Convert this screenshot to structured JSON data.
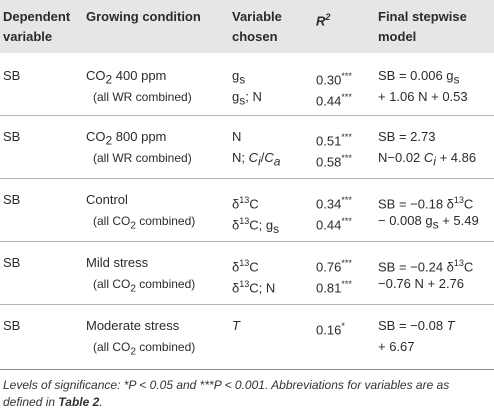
{
  "header": {
    "dependent_line1": "Dependent",
    "dependent_line2": "variable",
    "growing": "Growing condition",
    "variable_line1": "Variable",
    "variable_line2": "chosen",
    "r2_r": "R",
    "r2_sup": "2",
    "final_line1": "Final stepwise",
    "final_line2": "model"
  },
  "rows": [
    {
      "dep": "SB",
      "cond_a": "CO",
      "cond_a_sub": "2",
      "cond_a_rest": " 400 ppm",
      "cond_b": "(all WR combined)",
      "var1_a": "g",
      "var1_a_sub": "s",
      "var2_a": "g",
      "var2_a_sub": "s",
      "var2_b": "; N",
      "r1": "0.30",
      "r1_sig": "***",
      "r2": "0.44",
      "r2_sig": "***",
      "m1": "SB = 0.006 g",
      "m1_sub": "s",
      "m2": "+ 1.06 N + 0.53"
    },
    {
      "dep": "SB",
      "cond_a": "CO",
      "cond_a_sub": "2",
      "cond_a_rest": " 800 ppm",
      "cond_b": "(all WR combined)",
      "var1": "N",
      "var2_a": "N; ",
      "var2_ci": "C",
      "var2_ci_sub": "i",
      "var2_slash": "/",
      "var2_ca": "C",
      "var2_ca_sub": "a",
      "r1": "0.51",
      "r1_sig": "***",
      "r2": "0.58",
      "r2_sig": "***",
      "m1": "SB = 2.73",
      "m2_a": "N−0.02 ",
      "m2_c": "C",
      "m2_c_sub": "i",
      "m2_b": "+ 4.86"
    },
    {
      "dep": "SB",
      "cond_a": "Control",
      "cond_b_a": "(all CO",
      "cond_b_sub": "2",
      "cond_b_b": " combined)",
      "var1_d": "δ",
      "var1_sup": "13",
      "var1_c": "C",
      "var2_d": "δ",
      "var2_sup": "13",
      "var2_c": "C; g",
      "var2_sub": "s",
      "r1": "0.34",
      "r1_sig": "***",
      "r2": "0.44",
      "r2_sig": "***",
      "m1_a": "SB = −0.18 δ",
      "m1_sup": "13",
      "m1_b": "C",
      "m2_a": "− 0.008 g",
      "m2_sub": "s",
      "m2_b": " + 5.49"
    },
    {
      "dep": "SB",
      "cond_a": "Mild stress",
      "cond_b_a": "(all CO",
      "cond_b_sub": "2",
      "cond_b_b": " combined)",
      "var1_d": "δ",
      "var1_sup": "13",
      "var1_c": "C",
      "var2_d": "δ",
      "var2_sup": "13",
      "var2_c": "C; N",
      "r1": "0.76",
      "r1_sig": "***",
      "r2": "0.81",
      "r2_sig": "***",
      "m1_a": "SB = −0.24 δ",
      "m1_sup": "13",
      "m1_b": "C",
      "m2": "−0.76 N + 2.76"
    },
    {
      "dep": "SB",
      "cond_a": "Moderate stress",
      "cond_b_a": "(all CO",
      "cond_b_sub": "2",
      "cond_b_b": " combined)",
      "var1": "T",
      "r1": "0.16",
      "r1_sig": "*",
      "m1_a": "SB = −0.08 ",
      "m1_t": "T",
      "m2": "+ 6.67"
    }
  ],
  "footnote": {
    "part1": "Levels of significance: *P < 0.05 and ***P < 0.001. Abbreviations for variables are as defined in ",
    "table_ref": "Table 2",
    "part2": "."
  }
}
